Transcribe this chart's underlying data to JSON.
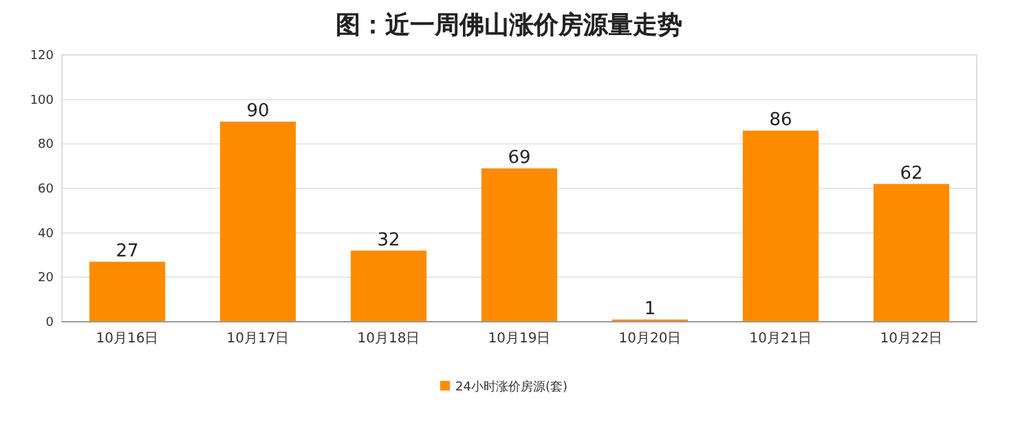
{
  "chart_data": {
    "type": "bar",
    "title": "图：近一周佛山涨价房源量走势",
    "categories": [
      "10月16日",
      "10月17日",
      "10月18日",
      "10月19日",
      "10月20日",
      "10月21日",
      "10月22日"
    ],
    "series": [
      {
        "name": "24小时涨价房源(套)",
        "color": "#ff8c00",
        "values": [
          27,
          90,
          32,
          69,
          1,
          86,
          62
        ]
      }
    ],
    "ylim": [
      0,
      120
    ],
    "yticks": [
      0,
      20,
      40,
      60,
      80,
      100,
      120
    ],
    "grid": "y",
    "legend": "bottom",
    "data_labels": true
  }
}
